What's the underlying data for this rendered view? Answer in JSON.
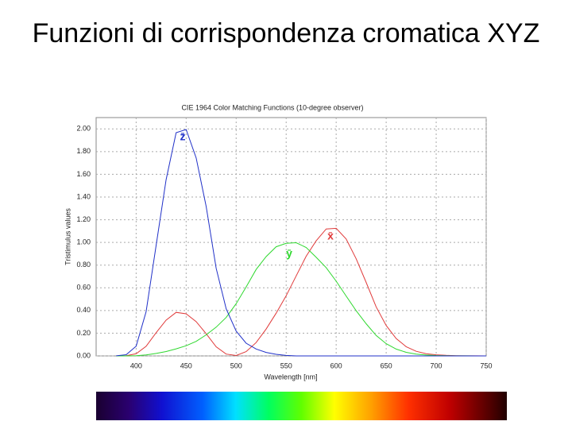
{
  "title": "Funzioni di corrispondenza cromatica XYZ",
  "chart_data": {
    "type": "line",
    "title": "CIE 1964 Color Matching Functions (10-degree observer)",
    "x_label": "Wavelength [nm]",
    "y_label": "Tristimulus values",
    "xlim": [
      360,
      750
    ],
    "ylim": [
      0,
      2.1
    ],
    "xticks": [
      400,
      450,
      500,
      550,
      600,
      650,
      700,
      750
    ],
    "yticks": [
      {
        "value": 0,
        "label": "0.00"
      },
      {
        "value": 0.2,
        "label": "0.20"
      },
      {
        "value": 0.4,
        "label": "0.40"
      },
      {
        "value": 0.6,
        "label": "0.60"
      },
      {
        "value": 0.8,
        "label": "0.80"
      },
      {
        "value": 1.0,
        "label": "1.00"
      },
      {
        "value": 1.2,
        "label": "1.20"
      },
      {
        "value": 1.4,
        "label": "1.40"
      },
      {
        "value": 1.6,
        "label": "1.60"
      },
      {
        "value": 1.8,
        "label": "1.80"
      },
      {
        "value": 2.0,
        "label": "2.00"
      }
    ],
    "grid": true,
    "x": [
      380,
      390,
      400,
      410,
      420,
      430,
      440,
      450,
      460,
      470,
      480,
      490,
      500,
      510,
      520,
      530,
      540,
      550,
      560,
      570,
      580,
      590,
      600,
      610,
      620,
      630,
      640,
      650,
      660,
      670,
      680,
      690,
      700,
      710,
      720,
      730,
      740,
      750
    ],
    "series": [
      {
        "name": "x̄",
        "color": "#e03a3a",
        "values": [
          0.0002,
          0.0024,
          0.0191,
          0.0847,
          0.2045,
          0.3147,
          0.3837,
          0.3707,
          0.3023,
          0.1956,
          0.0805,
          0.0162,
          0.0038,
          0.0375,
          0.1177,
          0.2365,
          0.3768,
          0.5298,
          0.7052,
          0.8787,
          1.0142,
          1.1185,
          1.124,
          1.0305,
          0.8563,
          0.6475,
          0.4316,
          0.2683,
          0.1526,
          0.0813,
          0.0409,
          0.0199,
          0.0096,
          0.0046,
          0.0022,
          0.001,
          0.0005,
          0.0003
        ]
      },
      {
        "name": "ȳ",
        "color": "#2ed82e",
        "values": [
          0.0,
          0.0003,
          0.002,
          0.0088,
          0.0214,
          0.0387,
          0.0621,
          0.0895,
          0.1282,
          0.1852,
          0.2536,
          0.3391,
          0.4608,
          0.6067,
          0.7618,
          0.8752,
          0.962,
          0.9918,
          0.9973,
          0.9556,
          0.8689,
          0.7774,
          0.6583,
          0.528,
          0.3981,
          0.2835,
          0.1798,
          0.1076,
          0.0603,
          0.0318,
          0.0159,
          0.0077,
          0.0037,
          0.0018,
          0.0008,
          0.0004,
          0.0002,
          0.0001
        ]
      },
      {
        "name": "z̄",
        "color": "#2030c8",
        "values": [
          0.0007,
          0.0105,
          0.086,
          0.3894,
          0.9725,
          1.5535,
          1.9673,
          1.9948,
          1.7454,
          1.3176,
          0.7721,
          0.4153,
          0.2185,
          0.112,
          0.0607,
          0.0305,
          0.0137,
          0.004,
          0.0,
          0,
          0,
          0,
          0,
          0,
          0,
          0,
          0,
          0,
          0,
          0,
          0,
          0,
          0,
          0,
          0,
          0,
          0,
          0
        ]
      }
    ]
  }
}
